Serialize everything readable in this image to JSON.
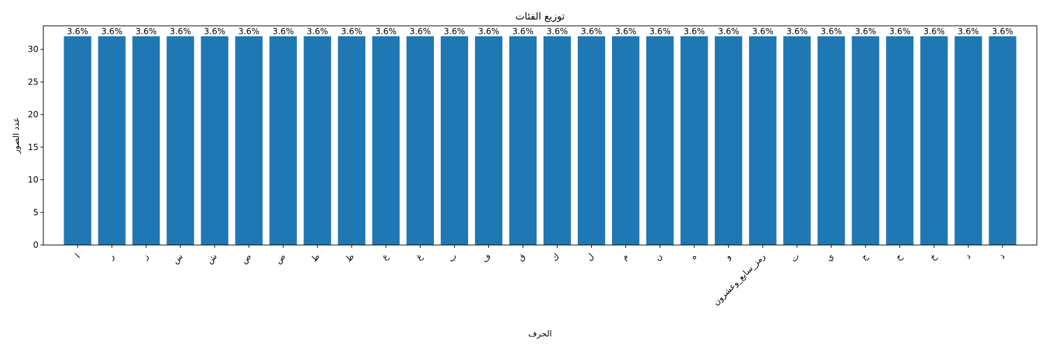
{
  "chart_data": {
    "type": "bar",
    "title": "توزيع الفئات",
    "xlabel": "الحرف",
    "ylabel": "عدد الصور",
    "categories": [
      "ا",
      "ر",
      "ز",
      "س",
      "ش",
      "ص",
      "ض",
      "ط",
      "ظ",
      "ع",
      "غ",
      "ب",
      "ف",
      "ق",
      "ك",
      "ل",
      "م",
      "ن",
      "ه",
      "و",
      "رمز_سابع_وعشرون",
      "ت",
      "ي",
      "ج",
      "ح",
      "خ",
      "د",
      "ذ"
    ],
    "values": [
      32,
      32,
      32,
      32,
      32,
      32,
      32,
      32,
      32,
      32,
      32,
      32,
      32,
      32,
      32,
      32,
      32,
      32,
      32,
      32,
      32,
      32,
      32,
      32,
      32,
      32,
      32,
      32
    ],
    "value_labels": [
      "3.6%",
      "3.6%",
      "3.6%",
      "3.6%",
      "3.6%",
      "3.6%",
      "3.6%",
      "3.6%",
      "3.6%",
      "3.6%",
      "3.6%",
      "3.6%",
      "3.6%",
      "3.6%",
      "3.6%",
      "3.6%",
      "3.6%",
      "3.6%",
      "3.6%",
      "3.6%",
      "3.6%",
      "3.6%",
      "3.6%",
      "3.6%",
      "3.6%",
      "3.6%",
      "3.6%",
      "3.6%"
    ],
    "ylim": [
      0,
      33.6
    ],
    "yticks": [
      0,
      5,
      10,
      15,
      20,
      25,
      30
    ],
    "grid": false,
    "bar_color": "#1f77b4"
  }
}
